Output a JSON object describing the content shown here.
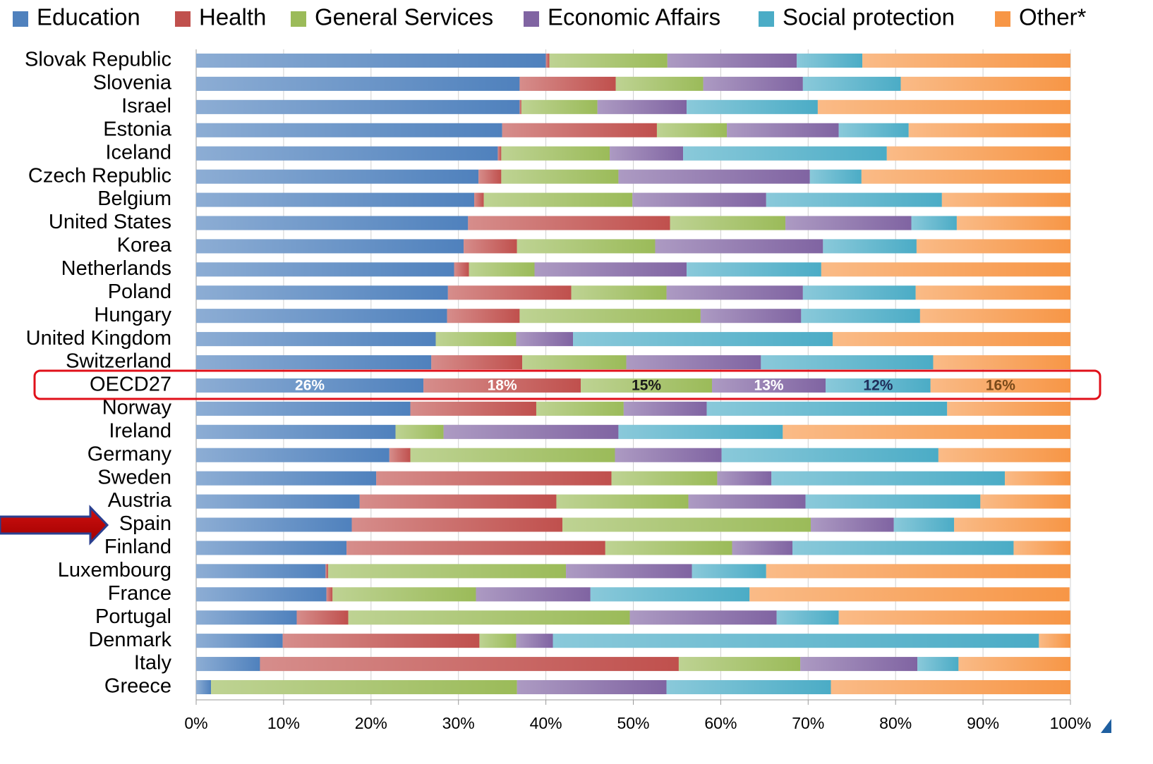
{
  "chart_data": {
    "type": "bar",
    "orientation": "horizontal",
    "stacked": true,
    "grid": true,
    "legend": "top",
    "categories": [
      "Slovak Republic",
      "Slovenia",
      "Israel",
      "Estonia",
      "Iceland",
      "Czech Republic",
      "Belgium",
      "United States",
      "Korea",
      "Netherlands",
      "Poland",
      "Hungary",
      "United Kingdom",
      "Switzerland",
      "OECD27",
      "Norway",
      "Ireland",
      "Germany",
      "Sweden",
      "Austria",
      "Spain",
      "Finland",
      "Luxembourg",
      "France",
      "Portugal",
      "Denmark",
      "Italy",
      "Greece"
    ],
    "xlim": [
      0,
      100
    ],
    "xticks": [
      {
        "value": 0,
        "label": "0%"
      },
      {
        "value": 10,
        "label": "10%"
      },
      {
        "value": 20,
        "label": "20%"
      },
      {
        "value": 30,
        "label": "30%"
      },
      {
        "value": 40,
        "label": "40%"
      },
      {
        "value": 50,
        "label": "50%"
      },
      {
        "value": 60,
        "label": "60%"
      },
      {
        "value": 70,
        "label": "70%"
      },
      {
        "value": 80,
        "label": "80%"
      },
      {
        "value": 90,
        "label": "90%"
      },
      {
        "value": 100,
        "label": "100%"
      }
    ],
    "series": [
      {
        "name": "Education",
        "color": "#4f81bd",
        "label_color": "#ffffff",
        "values": [
          40.0,
          37.0,
          37.0,
          35.0,
          34.5,
          32.3,
          31.8,
          31.1,
          30.6,
          29.5,
          28.8,
          28.7,
          27.4,
          26.9,
          26,
          24.5,
          22.8,
          22.1,
          20.6,
          18.7,
          17.8,
          17.2,
          14.8,
          14.9,
          11.5,
          9.9,
          7.3,
          1.7
        ],
        "value_labels": [
          null,
          null,
          null,
          null,
          null,
          null,
          null,
          null,
          null,
          null,
          null,
          null,
          null,
          null,
          "26%",
          null,
          null,
          null,
          null,
          null,
          null,
          null,
          null,
          null,
          null,
          null,
          null,
          null
        ]
      },
      {
        "name": "Health",
        "color": "#c0504d",
        "label_color": "#ffffff",
        "values": [
          0.4,
          11.0,
          0.2,
          17.7,
          0.4,
          2.6,
          1.1,
          23.1,
          6.1,
          1.7,
          14.1,
          8.3,
          0,
          10.4,
          18,
          14.4,
          0,
          2.4,
          26.9,
          22.5,
          24.1,
          29.6,
          0.3,
          0.7,
          5.9,
          22.5,
          47.9,
          0
        ],
        "value_labels": [
          null,
          null,
          null,
          null,
          null,
          null,
          null,
          null,
          null,
          null,
          null,
          null,
          null,
          null,
          "18%",
          null,
          null,
          null,
          null,
          null,
          null,
          null,
          null,
          null,
          null,
          null,
          null,
          null
        ]
      },
      {
        "name": "General Services",
        "color": "#9bbb59",
        "label_color": "#1a1a1a",
        "values": [
          13.5,
          10.0,
          8.7,
          8.0,
          12.4,
          13.4,
          17.0,
          13.2,
          15.8,
          7.5,
          10.9,
          20.7,
          9.2,
          11.9,
          15,
          10.0,
          5.5,
          23.4,
          12.1,
          15.1,
          28.4,
          14.5,
          27.2,
          16.4,
          32.2,
          4.2,
          13.9,
          35.0
        ],
        "value_labels": [
          null,
          null,
          null,
          null,
          null,
          null,
          null,
          null,
          null,
          null,
          null,
          null,
          null,
          null,
          "15%",
          null,
          null,
          null,
          null,
          null,
          null,
          null,
          null,
          null,
          null,
          null,
          null,
          null
        ]
      },
      {
        "name": "Economic Affairs",
        "color": "#8064a2",
        "label_color": "#ffffff",
        "values": [
          14.8,
          11.4,
          10.2,
          12.8,
          8.4,
          21.9,
          15.3,
          14.4,
          19.2,
          17.4,
          15.6,
          11.5,
          6.5,
          15.4,
          13,
          9.5,
          20.0,
          12.2,
          6.2,
          13.4,
          9.5,
          6.9,
          14.4,
          13.1,
          16.8,
          4.2,
          13.4,
          17.1
        ],
        "value_labels": [
          null,
          null,
          null,
          null,
          null,
          null,
          null,
          null,
          null,
          null,
          null,
          null,
          null,
          null,
          "13%",
          null,
          null,
          null,
          null,
          null,
          null,
          null,
          null,
          null,
          null,
          null,
          null,
          null
        ]
      },
      {
        "name": "Social protection",
        "color": "#4bacc6",
        "label_color": "#1f2d5a",
        "values": [
          7.5,
          11.2,
          15.0,
          8.0,
          23.3,
          5.9,
          20.1,
          5.2,
          10.7,
          15.4,
          12.9,
          13.6,
          29.7,
          19.7,
          12,
          27.5,
          18.8,
          24.8,
          26.7,
          20.0,
          6.9,
          25.3,
          8.5,
          18.2,
          7.1,
          55.6,
          4.7,
          18.8
        ],
        "value_labels": [
          null,
          null,
          null,
          null,
          null,
          null,
          null,
          null,
          null,
          null,
          null,
          null,
          null,
          null,
          "12%",
          null,
          null,
          null,
          null,
          null,
          null,
          null,
          null,
          null,
          null,
          null,
          null,
          null
        ]
      },
      {
        "name": "Other*",
        "color": "#f79646",
        "label_color": "#7a4a1a",
        "values": [
          23.8,
          19.4,
          28.9,
          18.5,
          21.0,
          23.9,
          14.7,
          13.0,
          17.6,
          28.5,
          17.7,
          17.2,
          27.2,
          15.7,
          16,
          14.1,
          32.9,
          15.1,
          7.5,
          10.3,
          13.3,
          6.5,
          34.8,
          36.6,
          26.5,
          3.6,
          12.8,
          27.4
        ],
        "value_labels": [
          null,
          null,
          null,
          null,
          null,
          null,
          null,
          null,
          null,
          null,
          null,
          null,
          null,
          null,
          "16%",
          null,
          null,
          null,
          null,
          null,
          null,
          null,
          null,
          null,
          null,
          null,
          null,
          null
        ]
      }
    ]
  }
}
